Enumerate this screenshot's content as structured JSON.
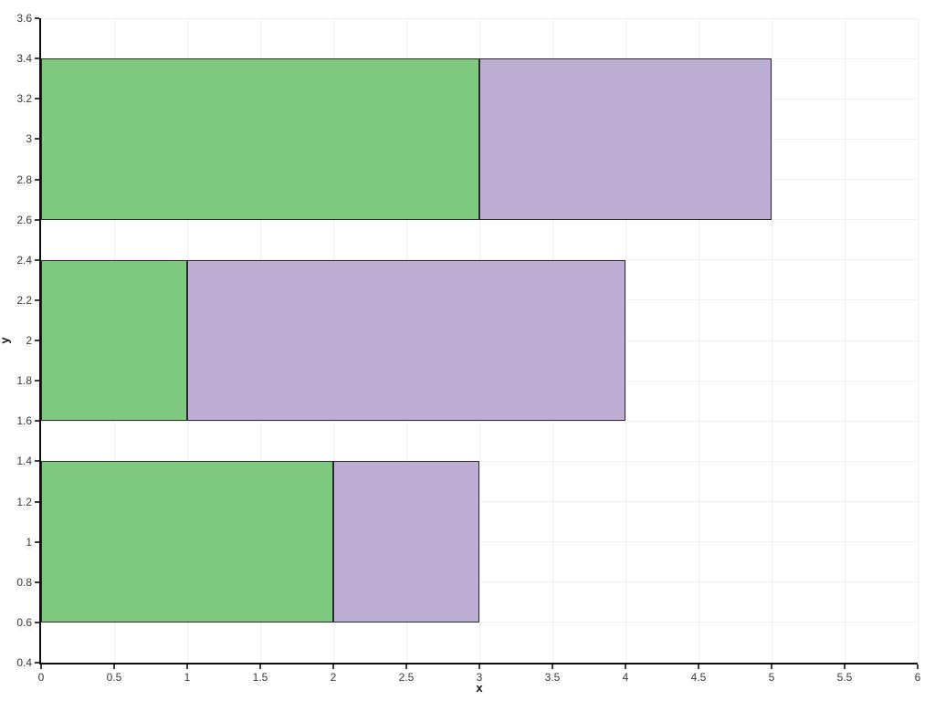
{
  "page": {
    "background_color": "#ffffff"
  },
  "chart_data": {
    "type": "bar",
    "orientation": "horizontal",
    "stacked": true,
    "title": "",
    "xlabel": "x",
    "ylabel": "y",
    "xlim": [
      0,
      6
    ],
    "ylim": [
      0.4,
      3.6
    ],
    "grid": true,
    "legend_position": "none",
    "grid_color_vertical": "#efefef",
    "grid_color_horizontal": "#f1f1f1",
    "axis_color": "#0c0c0c",
    "tick_color": "#3d3d3d",
    "tick_label_color": "#3c3c3c",
    "bar_edge_color": "#2a2a2a",
    "bar_thickness": 0.8,
    "x_ticks": {
      "values": [
        0,
        0.5,
        1,
        1.5,
        2,
        2.5,
        3,
        3.5,
        4,
        4.5,
        5,
        5.5,
        6
      ],
      "labels": [
        "0",
        "0.5",
        "1",
        "1.5",
        "2",
        "2.5",
        "3",
        "3.5",
        "4",
        "4.5",
        "5",
        "5.5",
        "6"
      ]
    },
    "y_ticks": {
      "values": [
        0.4,
        0.6,
        0.8,
        1,
        1.2,
        1.4,
        1.6,
        1.8,
        2,
        2.2,
        2.4,
        2.6,
        2.8,
        3,
        3.2,
        3.4,
        3.6
      ],
      "labels": [
        "0.4",
        "0.6",
        "0.8",
        "1",
        "1.2",
        "1.4",
        "1.6",
        "1.8",
        "2",
        "2.2",
        "2.4",
        "2.6",
        "2.8",
        "3",
        "3.2",
        "3.4",
        "3.6"
      ]
    },
    "y_centers": [
      1,
      2,
      3
    ],
    "series": [
      {
        "name": "green",
        "color": "#7fc97f",
        "values": [
          2,
          1,
          3
        ]
      },
      {
        "name": "purple",
        "color": "#beaed4",
        "values": [
          1,
          3,
          2
        ]
      }
    ],
    "totals": [
      3,
      4,
      5
    ]
  }
}
